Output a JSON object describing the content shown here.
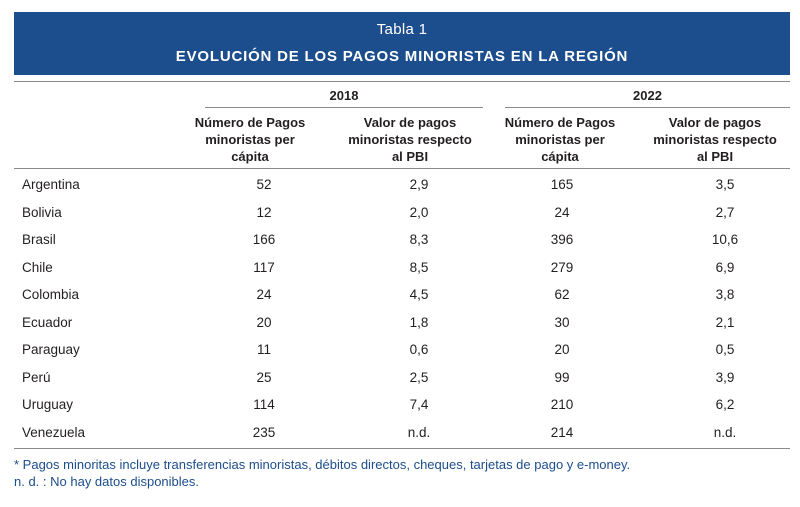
{
  "header": {
    "table_label": "Tabla 1",
    "title": "EVOLUCIÓN DE LOS PAGOS MINORISTAS EN LA REGIÓN"
  },
  "years": [
    "2018",
    "2022"
  ],
  "columns": {
    "num_pagos_2018": [
      "Número de  Pagos",
      "minoristas per",
      "cápita"
    ],
    "valor_pagos_2018": [
      "Valor de pagos",
      "minoristas respecto",
      "al PBI"
    ],
    "num_pagos_2022": [
      "Número de  Pagos",
      "minoristas per",
      "cápita"
    ],
    "valor_pagos_2022": [
      "Valor de pagos",
      "minoristas  respecto",
      "al PBI"
    ]
  },
  "rows": [
    {
      "country": "Argentina",
      "n2018": "52",
      "v2018": "2,9",
      "n2022": "165",
      "v2022": "3,5"
    },
    {
      "country": "Bolivia",
      "n2018": "12",
      "v2018": "2,0",
      "n2022": "24",
      "v2022": "2,7"
    },
    {
      "country": "Brasil",
      "n2018": "166",
      "v2018": "8,3",
      "n2022": "396",
      "v2022": "10,6"
    },
    {
      "country": "Chile",
      "n2018": "117",
      "v2018": "8,5",
      "n2022": "279",
      "v2022": "6,9"
    },
    {
      "country": "Colombia",
      "n2018": "24",
      "v2018": "4,5",
      "n2022": "62",
      "v2022": "3,8"
    },
    {
      "country": "Ecuador",
      "n2018": "20",
      "v2018": "1,8",
      "n2022": "30",
      "v2022": "2,1"
    },
    {
      "country": "Paraguay",
      "n2018": "11",
      "v2018": "0,6",
      "n2022": "20",
      "v2022": "0,5"
    },
    {
      "country": "Perú",
      "n2018": "25",
      "v2018": "2,5",
      "n2022": "99",
      "v2022": "3,9"
    },
    {
      "country": "Uruguay",
      "n2018": "114",
      "v2018": "7,4",
      "n2022": "210",
      "v2022": "6,2"
    },
    {
      "country": "Venezuela",
      "n2018": "235",
      "v2018": "n.d.",
      "n2022": "214",
      "v2022": "n.d."
    }
  ],
  "footnotes": [
    "* Pagos minoritas incluye transferencias minoristas, débitos directos, cheques, tarjetas de pago y e-money.",
    "n. d. : No hay datos disponibles."
  ]
}
